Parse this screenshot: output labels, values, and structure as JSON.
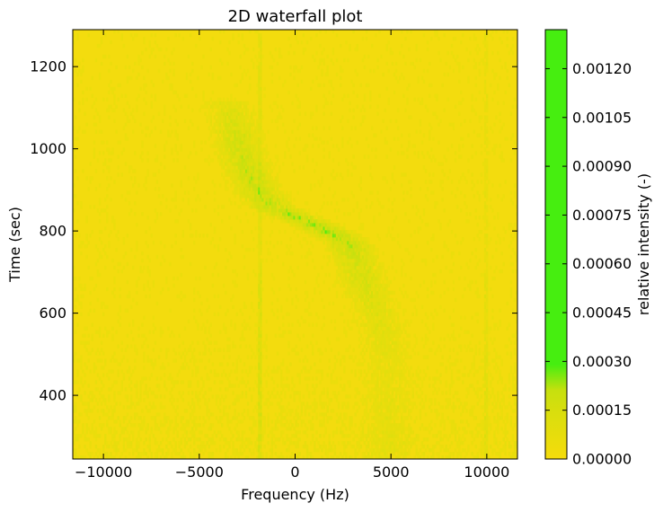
{
  "chart_data": {
    "type": "heatmap",
    "title": "2D waterfall plot",
    "xlabel": "Frequency (Hz)",
    "ylabel": "Time (sec)",
    "xlim": [
      -11600,
      11600
    ],
    "ylim": [
      245,
      1290
    ],
    "x_ticks": [
      -10000,
      -5000,
      0,
      5000,
      10000
    ],
    "x_tick_labels": [
      "−10000",
      "−5000",
      "0",
      "5000",
      "10000"
    ],
    "y_ticks": [
      400,
      600,
      800,
      1000,
      1200
    ],
    "y_tick_labels": [
      "400",
      "600",
      "800",
      "1000",
      "1200"
    ],
    "colorbar": {
      "label": "relative intensity (-)",
      "range": [
        0,
        0.00132
      ],
      "ticks": [
        0,
        0.00015,
        0.0003,
        0.00045,
        0.0006,
        0.00075,
        0.0009,
        0.00105,
        0.0012
      ],
      "tick_labels": [
        "0.00000",
        "0.00015",
        "0.00030",
        "0.00045",
        "0.00060",
        "0.00075",
        "0.00090",
        "0.00105",
        "0.00120"
      ],
      "colors": {
        "low": "#f5dc0c",
        "mid": "#c6e00e",
        "high": "#46ee10"
      }
    },
    "drift_track": [
      {
        "time": 1120,
        "freq": -3600,
        "intensity": 5e-05
      },
      {
        "time": 1060,
        "freq": -3200,
        "intensity": 0.00011
      },
      {
        "time": 1000,
        "freq": -2900,
        "intensity": 0.00013
      },
      {
        "time": 950,
        "freq": -2500,
        "intensity": 0.00014
      },
      {
        "time": 900,
        "freq": -2000,
        "intensity": 0.00015
      },
      {
        "time": 860,
        "freq": -1200,
        "intensity": 0.00016
      },
      {
        "time": 800,
        "freq": 1700,
        "intensity": 0.00019
      },
      {
        "time": 770,
        "freq": 2800,
        "intensity": 0.00016
      },
      {
        "time": 720,
        "freq": 3300,
        "intensity": 0.00012
      },
      {
        "time": 660,
        "freq": 3700,
        "intensity": 0.0001
      },
      {
        "time": 600,
        "freq": 4300,
        "intensity": 7e-05
      },
      {
        "time": 500,
        "freq": 4800,
        "intensity": 5e-05
      }
    ],
    "persistent_lines": [
      {
        "freq": -1800,
        "intensity": 0.00012
      },
      {
        "freq": 10000,
        "intensity": 7e-05
      }
    ],
    "grid": false
  }
}
